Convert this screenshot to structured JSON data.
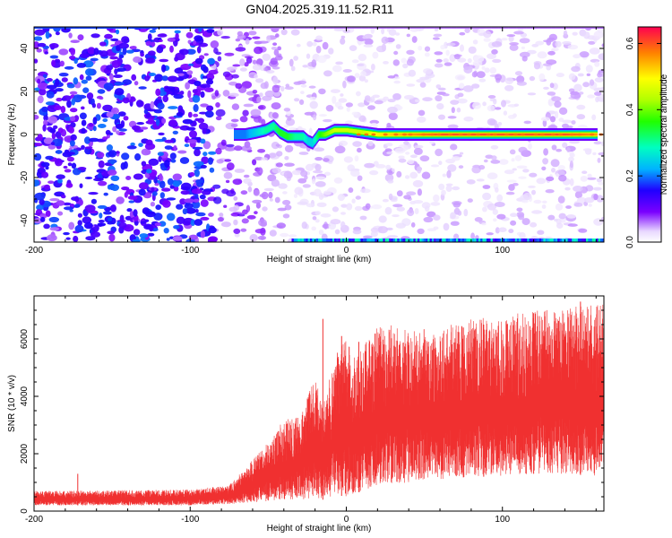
{
  "title": "GN04.2025.319.11.52.R11",
  "colors": {
    "snr_line": "#f03030",
    "background": "#ffffff"
  },
  "chart_data": [
    {
      "type": "heatmap",
      "xlabel": "Height of straight line (km)",
      "ylabel": "Frequency (Hz)",
      "xlim": [
        -200,
        165
      ],
      "ylim": [
        -50,
        50
      ],
      "xticks": [
        "-200",
        "-100",
        "0",
        "100"
      ],
      "xtick_values": [
        -200,
        -100,
        0,
        100
      ],
      "yticks": [
        "-40",
        "-20",
        "0",
        "20",
        "40"
      ],
      "ytick_values": [
        -40,
        -20,
        0,
        20,
        40
      ],
      "colorbar": {
        "label": "Normalized spectral amplitude",
        "range": [
          0,
          0.65
        ],
        "ticks": [
          "0.0",
          "0.2",
          "0.4",
          "0.6"
        ],
        "tick_values": [
          0.0,
          0.2,
          0.4,
          0.6
        ]
      },
      "signal_trace": {
        "x": [
          -72,
          -65,
          -58,
          -52,
          -47,
          -43,
          -38,
          -33,
          -28,
          -25,
          -22,
          -18,
          -14,
          -8,
          0,
          10,
          20,
          40,
          60,
          80,
          100,
          120,
          140,
          160
        ],
        "y": [
          0,
          0,
          1,
          2,
          4,
          1,
          -1,
          -1,
          -1,
          -3,
          -4,
          0,
          0,
          2,
          2,
          1,
          0,
          0,
          0,
          0,
          0,
          0,
          0,
          0
        ],
        "amplitude": [
          0.2,
          0.2,
          0.25,
          0.3,
          0.3,
          0.35,
          0.35,
          0.3,
          0.3,
          0.25,
          0.25,
          0.35,
          0.4,
          0.45,
          0.45,
          0.45,
          0.5,
          0.55,
          0.6,
          0.6,
          0.6,
          0.6,
          0.6,
          0.55
        ]
      }
    },
    {
      "type": "line",
      "xlabel": "Height of straight line (km)",
      "ylabel": "SNR (10 * v/v)",
      "xlim": [
        -200,
        165
      ],
      "ylim": [
        0,
        7500
      ],
      "xticks": [
        "-200",
        "-100",
        "0",
        "100"
      ],
      "xtick_values": [
        -200,
        -100,
        0,
        100
      ],
      "yticks": [
        "0",
        "2000",
        "4000",
        "6000"
      ],
      "ytick_values": [
        0,
        2000,
        4000,
        6000
      ],
      "envelope": {
        "x": [
          -200,
          -100,
          -75,
          -60,
          -50,
          -40,
          -30,
          -20,
          -15,
          -10,
          -5,
          0,
          5,
          10,
          20,
          40,
          60,
          80,
          100,
          120,
          140,
          165
        ],
        "upper": [
          700,
          750,
          900,
          1800,
          2400,
          3200,
          3300,
          4700,
          3600,
          4800,
          5700,
          6100,
          5500,
          5800,
          6600,
          6300,
          6400,
          6700,
          6800,
          7000,
          7100,
          7200
        ],
        "lower": [
          200,
          200,
          250,
          300,
          350,
          400,
          400,
          450,
          400,
          500,
          550,
          500,
          600,
          700,
          900,
          1000,
          1100,
          1200,
          1200,
          1300,
          1300,
          1200
        ]
      }
    }
  ]
}
